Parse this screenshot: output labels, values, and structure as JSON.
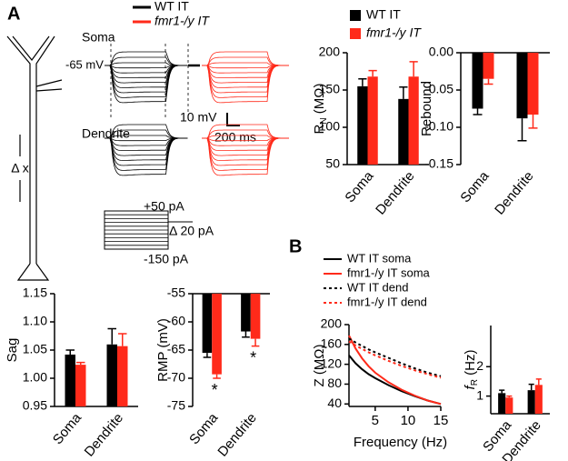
{
  "panels": {
    "A": "A",
    "B": "B"
  },
  "traces": {
    "legend": [
      "WT IT",
      "fmr1-/y IT"
    ],
    "soma": "Soma",
    "dendrite": "Dendrite",
    "rest": "-65 mV",
    "scale_v": "10 mV",
    "scale_t": "200 ms",
    "step_max": "+50 pA",
    "step_delta": "Δ 20 pA",
    "step_min": "-150 pA",
    "distance": "Δ x"
  },
  "chart_data": [
    {
      "type": "bar",
      "y_label": {
        "text": "R",
        "sub": "N",
        "unit": " (MΩ)"
      },
      "categories": [
        "Soma",
        "Dendrite"
      ],
      "series": [
        {
          "name": "WT IT",
          "color": "#000000",
          "values": [
            155,
            138
          ],
          "errors": [
            10,
            16
          ]
        },
        {
          "name": "fmr1-/y IT",
          "color": "#ff2a1a",
          "values": [
            168,
            168
          ],
          "errors": [
            8,
            20
          ]
        }
      ],
      "ylim": [
        50,
        200
      ],
      "yticks": [
        50,
        100,
        150,
        200
      ],
      "legend": "top-left"
    },
    {
      "type": "bar",
      "y_label": "Rebound",
      "categories": [
        "Soma",
        "Dendrite"
      ],
      "series": [
        {
          "name": "WT IT",
          "color": "#000000",
          "values": [
            -0.075,
            -0.088
          ],
          "errors": [
            0.008,
            0.03
          ]
        },
        {
          "name": "fmr1-/y IT",
          "color": "#ff2a1a",
          "values": [
            -0.035,
            -0.083
          ],
          "errors": [
            0.007,
            0.018
          ]
        }
      ],
      "ylim": [
        -0.15,
        0
      ],
      "yticks": [
        {
          "value": 0,
          "label": "0.00"
        },
        -0.05,
        {
          "value": -0.1,
          "label": "-0.10"
        },
        -0.15
      ]
    },
    {
      "type": "bar",
      "y_label": "Sag",
      "categories": [
        "Soma",
        "Dendrite"
      ],
      "series": [
        {
          "name": "WT IT",
          "color": "#000000",
          "values": [
            1.042,
            1.06
          ],
          "errors": [
            0.008,
            0.028
          ]
        },
        {
          "name": "fmr1-/y IT",
          "color": "#ff2a1a",
          "values": [
            1.024,
            1.057
          ],
          "errors": [
            0.004,
            0.022
          ]
        }
      ],
      "ylim": [
        0.95,
        1.15
      ],
      "yticks": [
        0.95,
        {
          "value": 1,
          "label": "1.00"
        },
        1.05,
        {
          "value": 1.1,
          "label": "1.10"
        },
        1.15
      ]
    },
    {
      "type": "bar",
      "y_label": "RMP (mV)",
      "categories": [
        "Soma",
        "Dendrite"
      ],
      "series": [
        {
          "name": "WT IT",
          "color": "#000000",
          "values": [
            -65.5,
            -61.7
          ],
          "errors": [
            0.8,
            1
          ]
        },
        {
          "name": "fmr1-/y IT",
          "color": "#ff2a1a",
          "values": [
            -69.3,
            -63
          ],
          "errors": [
            0.7,
            1.3
          ]
        }
      ],
      "ylim": [
        -75,
        -55
      ],
      "yticks": [
        -55,
        -60,
        -65,
        -70,
        -75
      ],
      "annotations": [
        "*",
        "*"
      ]
    },
    {
      "type": "line",
      "y_label": "Z (MΩ)",
      "x_label": "Frequency (Hz)",
      "x": [
        1,
        2,
        3,
        4,
        5,
        7,
        9,
        11,
        13,
        15
      ],
      "series": [
        {
          "name": "WT IT soma",
          "color": "#000000",
          "dash": false,
          "values": [
            138,
            122,
            110,
            100,
            92,
            78,
            66,
            56,
            47,
            40
          ]
        },
        {
          "name": "fmr1-/y IT soma",
          "color": "#ff2a1a",
          "dash": false,
          "values": [
            178,
            152,
            132,
            116,
            103,
            84,
            69,
            57,
            47,
            40
          ]
        },
        {
          "name": "WT IT dend",
          "color": "#000000",
          "dash": true,
          "values": [
            172,
            164,
            157,
            150,
            144,
            133,
            122,
            112,
            103,
            96
          ]
        },
        {
          "name": "fmr1-/y IT dend",
          "color": "#ff2a1a",
          "dash": true,
          "values": [
            166,
            158,
            151,
            144,
            138,
            127,
            117,
            108,
            100,
            93
          ]
        }
      ],
      "xlim": [
        1,
        15
      ],
      "xticks": [
        5,
        10,
        15
      ],
      "ylim": [
        35,
        200
      ],
      "yticks": [
        40,
        80,
        120,
        160,
        200
      ]
    },
    {
      "type": "bar",
      "y_label": {
        "text": "f",
        "sub": "R",
        "unit": " (Hz)"
      },
      "categories": [
        "Soma",
        "Dendrite"
      ],
      "series": [
        {
          "name": "WT IT",
          "color": "#000000",
          "values": [
            1.1,
            1.2
          ],
          "errors": [
            0.1,
            0.2
          ]
        },
        {
          "name": "fmr1-/y IT",
          "color": "#ff2a1a",
          "values": [
            0.95,
            1.38
          ],
          "errors": [
            0.05,
            0.2
          ]
        }
      ],
      "ylim": [
        0.4,
        3.4
      ],
      "yticks": [
        1,
        2
      ]
    }
  ]
}
